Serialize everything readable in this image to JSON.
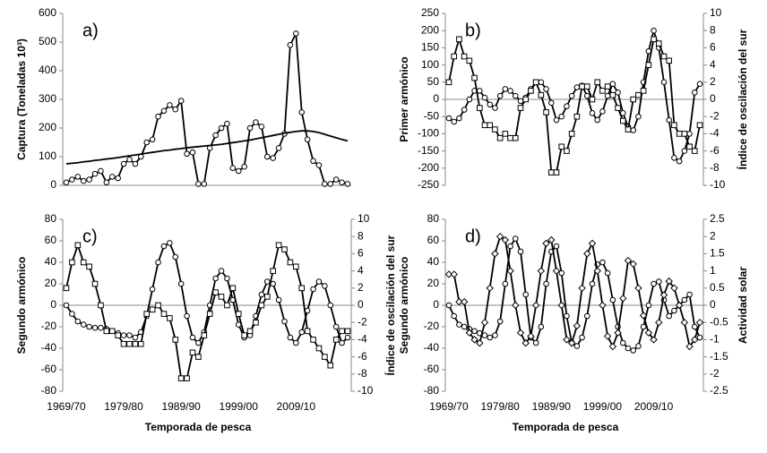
{
  "chart_data": [
    {
      "type": "line",
      "label": "a)",
      "ylabel": "Captura (Toneladas 10³)",
      "ylim": [
        0,
        600
      ],
      "yticks": [
        0,
        100,
        200,
        300,
        400,
        500,
        600
      ],
      "categories": [
        null,
        null,
        null,
        null,
        null,
        null,
        null,
        null,
        null,
        null,
        null,
        null,
        null,
        null,
        null,
        null,
        null,
        null,
        null,
        null,
        null,
        null,
        null,
        null,
        null,
        null,
        null,
        null,
        null,
        null,
        null,
        null,
        null,
        null,
        null,
        null,
        null,
        null,
        null,
        null,
        null,
        null,
        null,
        null,
        null,
        null,
        null,
        null,
        null,
        null
      ],
      "series": [
        {
          "color": "#000000",
          "marker": "circle",
          "values": [
            10,
            20,
            30,
            15,
            20,
            40,
            50,
            10,
            30,
            25,
            75,
            90,
            75,
            100,
            150,
            160,
            240,
            260,
            280,
            265,
            295,
            110,
            115,
            5,
            5,
            130,
            175,
            200,
            215,
            60,
            50,
            65,
            200,
            220,
            205,
            100,
            95,
            130,
            180,
            490,
            530,
            255,
            160,
            85,
            70,
            5,
            5,
            20,
            10,
            5
          ]
        },
        {
          "color": "#000000",
          "marker": "none",
          "values": [
            75,
            77,
            79,
            82,
            84,
            87,
            89,
            92,
            94,
            97,
            100,
            103,
            106,
            109,
            112,
            115,
            118,
            121,
            123,
            126,
            128,
            131,
            133,
            135,
            137,
            139,
            141,
            143,
            146,
            149,
            152,
            155,
            158,
            162,
            166,
            170,
            174,
            178,
            182,
            185,
            188,
            190,
            190,
            188,
            184,
            178,
            172,
            166,
            160,
            155
          ]
        }
      ]
    },
    {
      "type": "line",
      "label": "b)",
      "ylabel": "Primer armónico",
      "y2label": "Índice de oscilación del sur",
      "ylim": [
        -250,
        250
      ],
      "yticks": [
        -250,
        -200,
        -150,
        -100,
        -50,
        0,
        50,
        100,
        150,
        200,
        250
      ],
      "y2lim": [
        -10,
        10
      ],
      "y2ticks": [
        -10,
        -8,
        -6,
        -4,
        -2,
        0,
        2,
        4,
        6,
        8,
        10
      ],
      "categories": [
        null,
        null,
        null,
        null,
        null,
        null,
        null,
        null,
        null,
        null,
        null,
        null,
        null,
        null,
        null,
        null,
        null,
        null,
        null,
        null,
        null,
        null,
        null,
        null,
        null,
        null,
        null,
        null,
        null,
        null,
        null,
        null,
        null,
        null,
        null,
        null,
        null,
        null,
        null,
        null,
        null,
        null,
        null,
        null,
        null,
        null,
        null,
        null,
        null,
        null
      ],
      "series": [
        {
          "color": "#000000",
          "marker": "circle",
          "values": [
            -55,
            -65,
            -55,
            -30,
            0,
            25,
            25,
            5,
            -15,
            -25,
            10,
            30,
            25,
            10,
            -5,
            5,
            30,
            50,
            50,
            30,
            -10,
            -60,
            -50,
            -20,
            10,
            35,
            40,
            10,
            -40,
            -60,
            -35,
            10,
            45,
            20,
            -40,
            -80,
            -90,
            -50,
            50,
            140,
            200,
            150,
            50,
            -60,
            -170,
            -180,
            -150,
            -100,
            20,
            45
          ]
        },
        {
          "color": "#000000",
          "marker": "square",
          "axis": "y2",
          "values": [
            2,
            5,
            7,
            5,
            4.5,
            2.5,
            -1,
            -3,
            -3,
            -3.5,
            -4.5,
            -4,
            -4.5,
            -4.5,
            -1,
            0,
            1,
            2,
            0.5,
            -1.5,
            -8.5,
            -8.5,
            -5.5,
            -6,
            -4,
            -2,
            1.5,
            1.5,
            0,
            2,
            1,
            1.5,
            0.5,
            -1,
            -2.5,
            -3.5,
            0,
            0.5,
            1,
            4,
            7,
            6.5,
            5,
            4.5,
            -3,
            -4,
            -4,
            -5.5,
            -6,
            -3
          ]
        }
      ]
    },
    {
      "type": "line",
      "label": "c)",
      "ylabel": "Segundo armónico",
      "y2label": "Índice de oscilación del sur",
      "xlabel": "Temporada de pesca",
      "ylim": [
        -80,
        80
      ],
      "yticks": [
        -80,
        -60,
        -40,
        -20,
        0,
        20,
        40,
        60,
        80
      ],
      "y2lim": [
        -10,
        10
      ],
      "y2ticks": [
        -10,
        -8,
        -6,
        -4,
        -2,
        0,
        2,
        4,
        6,
        8,
        10
      ],
      "categories": [
        "1969/70",
        null,
        null,
        null,
        null,
        null,
        null,
        null,
        null,
        null,
        "1979/80",
        null,
        null,
        null,
        null,
        null,
        null,
        null,
        null,
        null,
        "1989/90",
        null,
        null,
        null,
        null,
        null,
        null,
        null,
        null,
        null,
        "1999/00",
        null,
        null,
        null,
        null,
        null,
        null,
        null,
        null,
        null,
        "2009/10",
        null,
        null,
        null,
        null,
        null,
        null,
        null,
        null,
        null
      ],
      "series": [
        {
          "color": "#000000",
          "marker": "circle",
          "values": [
            0,
            -8,
            -15,
            -18,
            -20,
            -21,
            -21,
            -22,
            -24,
            -26,
            -28,
            -28,
            -30,
            -25,
            -10,
            15,
            40,
            55,
            58,
            45,
            20,
            -10,
            -30,
            -35,
            -25,
            0,
            25,
            32,
            25,
            5,
            -18,
            -30,
            -28,
            -10,
            10,
            22,
            20,
            5,
            -15,
            -30,
            -35,
            -25,
            -5,
            15,
            22,
            18,
            0,
            -20,
            -35,
            -30
          ]
        },
        {
          "color": "#000000",
          "marker": "square",
          "axis": "y2",
          "values": [
            2,
            5,
            7,
            5,
            4.5,
            2.5,
            0,
            -3,
            -3,
            -3.5,
            -4.5,
            -4.5,
            -4.5,
            -4.5,
            -1,
            -0.5,
            0,
            -1,
            -1.5,
            -4,
            -8.5,
            -8.5,
            -5.5,
            -6,
            -3.5,
            -1,
            1.5,
            1,
            0,
            2,
            -1,
            -3.5,
            -3,
            -2,
            0,
            1,
            4,
            7,
            6.5,
            5,
            4.5,
            2,
            -3,
            -4,
            -5,
            -6,
            -7,
            -4,
            -3,
            -3
          ]
        }
      ]
    },
    {
      "type": "line",
      "label": "d)",
      "ylabel": "Segundo armónico",
      "y2label": "Actividad solar",
      "xlabel": "Temporada de pesca",
      "ylim": [
        -80,
        80
      ],
      "yticks": [
        -80,
        -60,
        -40,
        -20,
        0,
        20,
        40,
        60,
        80
      ],
      "y2lim": [
        -2.5,
        2.5
      ],
      "y2ticks": [
        -2.5,
        -2,
        -1.5,
        -1,
        -0.5,
        0,
        0.5,
        1,
        1.5,
        2,
        2.5
      ],
      "categories": [
        "1969/70",
        null,
        null,
        null,
        null,
        null,
        null,
        null,
        null,
        null,
        "1979/80",
        null,
        null,
        null,
        null,
        null,
        null,
        null,
        null,
        null,
        "1989/90",
        null,
        null,
        null,
        null,
        null,
        null,
        null,
        null,
        null,
        "1999/00",
        null,
        null,
        null,
        null,
        null,
        null,
        null,
        null,
        null,
        "2009/10",
        null,
        null,
        null,
        null,
        null,
        null,
        null,
        null,
        null
      ],
      "series": [
        {
          "color": "#000000",
          "marker": "circle",
          "values": [
            0,
            -10,
            -18,
            -20,
            -22,
            -24,
            -26,
            -28,
            -30,
            -28,
            -15,
            20,
            55,
            62,
            50,
            10,
            -30,
            -35,
            -20,
            20,
            50,
            55,
            30,
            -10,
            -35,
            -38,
            -30,
            -10,
            20,
            38,
            40,
            30,
            5,
            -20,
            -35,
            -40,
            -42,
            -38,
            -20,
            0,
            20,
            22,
            5,
            -10,
            -5,
            0,
            5,
            10,
            -20,
            -30
          ]
        },
        {
          "color": "#000000",
          "marker": "diamond",
          "axis": "y2",
          "values": [
            0.9,
            0.9,
            0.1,
            0.1,
            -0.8,
            -1,
            -1.1,
            -0.5,
            0.5,
            1.5,
            2,
            1.9,
            1,
            0,
            -0.8,
            -1.1,
            -0.9,
            0,
            1,
            1.8,
            1.9,
            1,
            0,
            -1,
            -1.1,
            -0.6,
            0.5,
            1.5,
            1.8,
            1,
            0,
            -0.9,
            -1.2,
            -0.8,
            0.2,
            1.3,
            1.2,
            0.5,
            -0.3,
            -0.8,
            -1,
            -0.5,
            0.3,
            0.7,
            0.5,
            0,
            -0.5,
            -1.2,
            -1,
            -0.5
          ]
        }
      ]
    }
  ]
}
